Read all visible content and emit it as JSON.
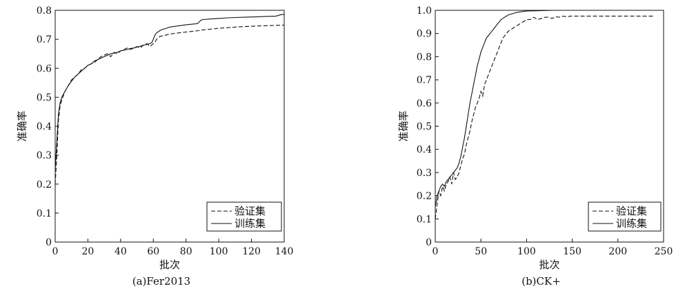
{
  "chart_data": [
    {
      "type": "line",
      "caption": "(a)Fer2013",
      "xlabel": "批次",
      "ylabel": "准确率",
      "xlim": [
        0,
        140
      ],
      "ylim": [
        0,
        0.8
      ],
      "x_ticks": [
        "0",
        "20",
        "40",
        "60",
        "80",
        "100",
        "120",
        "140"
      ],
      "y_ticks": [
        "0",
        "0.1",
        "0.2",
        "0.3",
        "0.4",
        "0.5",
        "0.6",
        "0.7",
        "0.8"
      ],
      "legend_position": "bottom-right",
      "grid": false,
      "series": [
        {
          "name": "验证集",
          "style": "dashed",
          "x": [
            0,
            1,
            2,
            3,
            4,
            6,
            8,
            10,
            12,
            14,
            16,
            18,
            20,
            22,
            24,
            26,
            28,
            30,
            32,
            34,
            36,
            38,
            40,
            42,
            44,
            46,
            48,
            50,
            52,
            54,
            56,
            58,
            59,
            60,
            61,
            62,
            64,
            66,
            68,
            70,
            75,
            80,
            85,
            88,
            90,
            95,
            100,
            105,
            110,
            115,
            120,
            125,
            130,
            135,
            140
          ],
          "y": [
            0.2,
            0.3,
            0.42,
            0.47,
            0.49,
            0.52,
            0.54,
            0.56,
            0.57,
            0.58,
            0.595,
            0.6,
            0.61,
            0.615,
            0.62,
            0.63,
            0.64,
            0.645,
            0.65,
            0.64,
            0.655,
            0.65,
            0.66,
            0.665,
            0.67,
            0.665,
            0.67,
            0.675,
            0.67,
            0.68,
            0.685,
            0.675,
            0.68,
            0.685,
            0.69,
            0.7,
            0.71,
            0.712,
            0.715,
            0.718,
            0.722,
            0.725,
            0.728,
            0.73,
            0.732,
            0.735,
            0.738,
            0.74,
            0.742,
            0.744,
            0.745,
            0.746,
            0.747,
            0.748,
            0.749
          ]
        },
        {
          "name": "训练集",
          "style": "solid",
          "x": [
            0,
            1,
            2,
            3,
            4,
            6,
            8,
            10,
            12,
            14,
            16,
            18,
            20,
            22,
            24,
            26,
            28,
            30,
            32,
            34,
            36,
            38,
            40,
            42,
            44,
            46,
            48,
            50,
            52,
            54,
            56,
            58,
            59,
            60,
            61,
            62,
            64,
            66,
            68,
            70,
            75,
            80,
            85,
            87,
            88,
            89,
            90,
            95,
            100,
            105,
            110,
            115,
            120,
            125,
            130,
            135,
            138,
            140
          ],
          "y": [
            0.25,
            0.35,
            0.44,
            0.48,
            0.5,
            0.52,
            0.54,
            0.555,
            0.57,
            0.58,
            0.59,
            0.6,
            0.61,
            0.615,
            0.625,
            0.63,
            0.635,
            0.64,
            0.645,
            0.65,
            0.652,
            0.655,
            0.66,
            0.662,
            0.665,
            0.668,
            0.67,
            0.673,
            0.676,
            0.68,
            0.682,
            0.685,
            0.688,
            0.7,
            0.715,
            0.722,
            0.73,
            0.735,
            0.738,
            0.742,
            0.746,
            0.75,
            0.753,
            0.754,
            0.76,
            0.765,
            0.768,
            0.77,
            0.772,
            0.774,
            0.775,
            0.776,
            0.777,
            0.778,
            0.779,
            0.78,
            0.785,
            0.786
          ]
        }
      ]
    },
    {
      "type": "line",
      "caption": "(b)CK+",
      "xlabel": "批次",
      "ylabel": "准确率",
      "xlim": [
        0,
        250
      ],
      "ylim": [
        0,
        1.0
      ],
      "x_ticks": [
        "0",
        "50",
        "100",
        "150",
        "200",
        "250"
      ],
      "y_ticks": [
        "0",
        "0.1",
        "0.2",
        "0.3",
        "0.4",
        "0.5",
        "0.6",
        "0.7",
        "0.8",
        "0.9",
        "1.0"
      ],
      "legend_position": "bottom-right",
      "grid": false,
      "series": [
        {
          "name": "验证集",
          "style": "dashed",
          "x": [
            0,
            2,
            4,
            6,
            8,
            10,
            12,
            14,
            16,
            18,
            20,
            22,
            24,
            26,
            28,
            30,
            32,
            34,
            36,
            38,
            40,
            42,
            44,
            46,
            48,
            50,
            52,
            54,
            56,
            58,
            60,
            62,
            64,
            66,
            68,
            70,
            72,
            74,
            76,
            78,
            80,
            84,
            88,
            92,
            96,
            100,
            104,
            108,
            112,
            116,
            120,
            124,
            128,
            132,
            136,
            140,
            144,
            148,
            152,
            160,
            180,
            200,
            220,
            240
          ],
          "y": [
            0.1,
            0.16,
            0.22,
            0.2,
            0.24,
            0.22,
            0.25,
            0.26,
            0.28,
            0.25,
            0.3,
            0.27,
            0.28,
            0.3,
            0.33,
            0.36,
            0.38,
            0.42,
            0.45,
            0.48,
            0.52,
            0.55,
            0.58,
            0.6,
            0.62,
            0.65,
            0.63,
            0.68,
            0.7,
            0.72,
            0.74,
            0.76,
            0.78,
            0.8,
            0.82,
            0.84,
            0.86,
            0.88,
            0.89,
            0.9,
            0.91,
            0.92,
            0.93,
            0.94,
            0.95,
            0.96,
            0.96,
            0.97,
            0.96,
            0.965,
            0.97,
            0.97,
            0.965,
            0.972,
            0.97,
            0.975,
            0.972,
            0.975,
            0.975,
            0.975,
            0.975,
            0.975,
            0.975,
            0.975
          ]
        },
        {
          "name": "训练集",
          "style": "solid",
          "x": [
            0,
            2,
            4,
            6,
            8,
            10,
            12,
            14,
            16,
            18,
            20,
            22,
            24,
            26,
            28,
            30,
            32,
            34,
            36,
            38,
            40,
            42,
            44,
            46,
            48,
            50,
            52,
            54,
            56,
            58,
            60,
            62,
            64,
            66,
            68,
            70,
            72,
            74,
            76,
            78,
            80,
            84,
            88,
            92,
            96,
            100,
            110,
            120,
            130,
            140,
            150,
            160,
            180,
            200,
            220,
            240
          ],
          "y": [
            0.15,
            0.2,
            0.22,
            0.24,
            0.25,
            0.24,
            0.26,
            0.27,
            0.28,
            0.29,
            0.3,
            0.31,
            0.32,
            0.34,
            0.37,
            0.41,
            0.45,
            0.5,
            0.55,
            0.6,
            0.64,
            0.68,
            0.72,
            0.76,
            0.79,
            0.82,
            0.84,
            0.86,
            0.88,
            0.89,
            0.9,
            0.91,
            0.92,
            0.93,
            0.94,
            0.95,
            0.96,
            0.965,
            0.97,
            0.975,
            0.98,
            0.985,
            0.99,
            0.993,
            0.995,
            0.997,
            0.998,
            0.999,
            1.0,
            1.0,
            1.0,
            1.0,
            1.0,
            1.0,
            1.0,
            1.0
          ]
        }
      ]
    }
  ]
}
